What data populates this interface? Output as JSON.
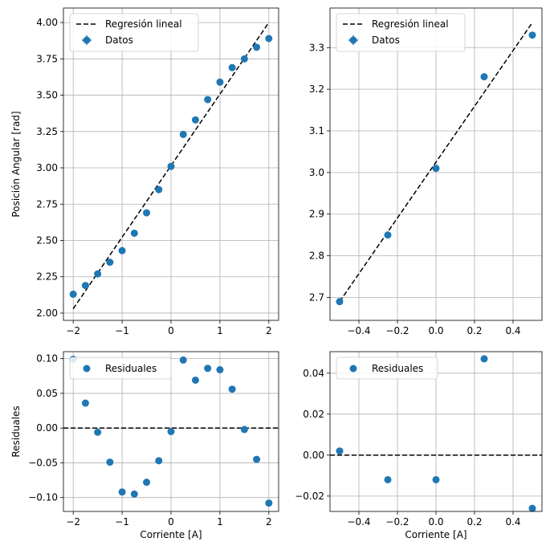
{
  "chart_data": [
    {
      "type": "scatter",
      "ylabel": "Posición Angular [rad]",
      "xlabel": "",
      "xlim": [
        -2.2,
        2.2
      ],
      "ylim": [
        1.95,
        4.1
      ],
      "xticks": [
        -2,
        -1,
        0,
        1,
        2
      ],
      "yticks": [
        2.0,
        2.25,
        2.5,
        2.75,
        3.0,
        3.25,
        3.5,
        3.75,
        4.0
      ],
      "xtick_labels": [
        "−2",
        "−1",
        "0",
        "1",
        "2"
      ],
      "ytick_labels": [
        "2.00",
        "2.25",
        "2.50",
        "2.75",
        "3.00",
        "3.25",
        "3.50",
        "3.75",
        "4.00"
      ],
      "grid": true,
      "legend_position": "top-left",
      "legend": [
        "Regresión lineal",
        "Datos"
      ],
      "series": [
        {
          "name": "Datos",
          "x": [
            -2.0,
            -1.75,
            -1.5,
            -1.25,
            -1.0,
            -0.75,
            -0.5,
            -0.25,
            0.0,
            0.25,
            0.5,
            0.75,
            1.0,
            1.25,
            1.5,
            1.75,
            2.0
          ],
          "y": [
            2.13,
            2.19,
            2.27,
            2.35,
            2.43,
            2.55,
            2.69,
            2.85,
            3.01,
            3.23,
            3.33,
            3.47,
            3.59,
            3.69,
            3.75,
            3.83,
            3.89
          ]
        },
        {
          "name": "Regresión lineal",
          "x": [
            -2.0,
            2.0
          ],
          "y": [
            2.03,
            4.0
          ]
        }
      ]
    },
    {
      "type": "scatter",
      "ylabel": "",
      "xlabel": "",
      "xlim": [
        -0.55,
        0.55
      ],
      "ylim": [
        2.645,
        3.395
      ],
      "xticks": [
        -0.4,
        -0.2,
        0.0,
        0.2,
        0.4
      ],
      "yticks": [
        2.7,
        2.8,
        2.9,
        3.0,
        3.1,
        3.2,
        3.3
      ],
      "xtick_labels": [
        "−0.4",
        "−0.2",
        "0.0",
        "0.2",
        "0.4"
      ],
      "ytick_labels": [
        "2.7",
        "2.8",
        "2.9",
        "3.0",
        "3.1",
        "3.2",
        "3.3"
      ],
      "grid": true,
      "legend_position": "top-left",
      "legend": [
        "Regresión lineal",
        "Datos"
      ],
      "series": [
        {
          "name": "Datos",
          "x": [
            -0.5,
            -0.25,
            0.0,
            0.25,
            0.5
          ],
          "y": [
            2.69,
            2.85,
            3.01,
            3.23,
            3.33
          ]
        },
        {
          "name": "Regresión lineal",
          "x": [
            -0.5,
            0.5
          ],
          "y": [
            2.69,
            3.36
          ]
        }
      ]
    },
    {
      "type": "scatter",
      "ylabel": "Residuales",
      "xlabel": "Corriente [A]",
      "xlim": [
        -2.2,
        2.2
      ],
      "ylim": [
        -0.12,
        0.11
      ],
      "xticks": [
        -2,
        -1,
        0,
        1,
        2
      ],
      "yticks": [
        -0.1,
        -0.05,
        0.0,
        0.05,
        0.1
      ],
      "xtick_labels": [
        "−2",
        "−1",
        "0",
        "1",
        "2"
      ],
      "ytick_labels": [
        "−0.10",
        "−0.05",
        "0.00",
        "0.05",
        "0.10"
      ],
      "grid": true,
      "legend_position": "top-left",
      "legend": [
        "Residuales"
      ],
      "zero_line": true,
      "series": [
        {
          "name": "Residuales",
          "x": [
            -2.0,
            -1.75,
            -1.5,
            -1.25,
            -1.0,
            -0.75,
            -0.5,
            -0.25,
            0.0,
            0.25,
            0.5,
            0.75,
            1.0,
            1.25,
            1.5,
            1.75,
            2.0
          ],
          "y": [
            0.099,
            0.036,
            -0.006,
            -0.049,
            -0.092,
            -0.095,
            -0.078,
            -0.047,
            -0.005,
            0.098,
            0.069,
            0.086,
            0.084,
            0.056,
            -0.002,
            -0.045,
            -0.108
          ]
        }
      ]
    },
    {
      "type": "scatter",
      "ylabel": "",
      "xlabel": "Corriente [A]",
      "xlim": [
        -0.55,
        0.55
      ],
      "ylim": [
        -0.0275,
        0.0505
      ],
      "xticks": [
        -0.4,
        -0.2,
        0.0,
        0.2,
        0.4
      ],
      "yticks": [
        -0.02,
        0.0,
        0.02,
        0.04
      ],
      "xtick_labels": [
        "−0.4",
        "−0.2",
        "0.0",
        "0.2",
        "0.4"
      ],
      "ytick_labels": [
        "−0.02",
        "0.00",
        "0.02",
        "0.04"
      ],
      "grid": true,
      "legend_position": "top-left",
      "legend": [
        "Residuales"
      ],
      "zero_line": true,
      "series": [
        {
          "name": "Residuales",
          "x": [
            -0.5,
            -0.25,
            0.0,
            0.25,
            0.5
          ],
          "y": [
            0.002,
            -0.012,
            -0.012,
            0.047,
            -0.026
          ]
        }
      ]
    }
  ],
  "colors": {
    "points": "#1f77b4",
    "regression": "#000000",
    "grid": "#b0b0b0",
    "frame": "#000000"
  }
}
